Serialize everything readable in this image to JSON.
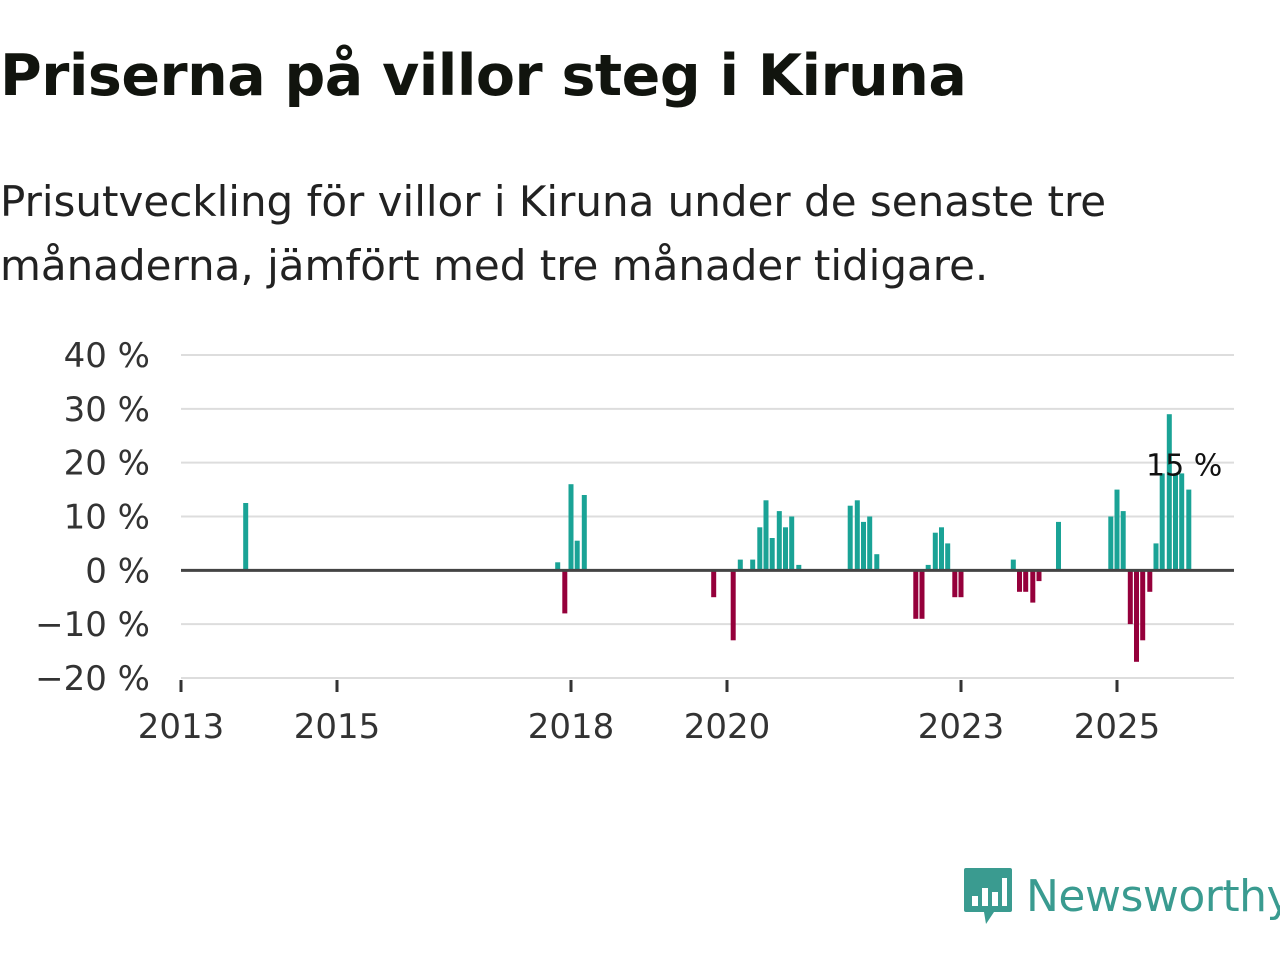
{
  "title": "Priserna på villor steg i Kiruna",
  "subtitle": "Prisutveckling för villor i Kiruna under de senaste tre månaderna, jämfört med tre månader tidigare.",
  "brand": {
    "name": "Newsworthy",
    "color": "#3a9b90"
  },
  "colors": {
    "positive": "#1aa396",
    "negative": "#95003b",
    "grid": "#dddddd",
    "zero": "#444444"
  },
  "chart_data": {
    "type": "bar",
    "title": "Priserna på villor steg i Kiruna",
    "ylabel": "",
    "xlabel": "",
    "ylim": [
      -20,
      40
    ],
    "xlim": [
      2013.0,
      2026.5
    ],
    "y_ticks": [
      {
        "value": 40,
        "label": "40 %"
      },
      {
        "value": 30,
        "label": "30 %"
      },
      {
        "value": 20,
        "label": "20 %"
      },
      {
        "value": 10,
        "label": "10 %"
      },
      {
        "value": 0,
        "label": "0 %"
      },
      {
        "value": -10,
        "label": "−10 %"
      },
      {
        "value": -20,
        "label": "−20 %"
      }
    ],
    "x_ticks": [
      {
        "value": 2013,
        "label": "2013"
      },
      {
        "value": 2015,
        "label": "2015"
      },
      {
        "value": 2018,
        "label": "2018"
      },
      {
        "value": 2020,
        "label": "2020"
      },
      {
        "value": 2023,
        "label": "2023"
      },
      {
        "value": 2025,
        "label": "2025"
      }
    ],
    "annotation": {
      "label": "15 %",
      "x": 2026.25,
      "value": 15
    },
    "x": [
      2013.83,
      2017.83,
      2017.92,
      2018.0,
      2018.08,
      2018.17,
      2019.83,
      2020.08,
      2020.17,
      2020.33,
      2020.42,
      2020.5,
      2020.58,
      2020.67,
      2020.75,
      2020.83,
      2020.92,
      2021.58,
      2021.67,
      2021.75,
      2021.83,
      2021.92,
      2022.42,
      2022.5,
      2022.58,
      2022.67,
      2022.75,
      2022.83,
      2022.92,
      2023.0,
      2023.67,
      2023.75,
      2023.83,
      2023.92,
      2024.0,
      2024.25,
      2024.92,
      2025.0,
      2025.08,
      2025.17,
      2025.25,
      2025.33,
      2025.42,
      2025.5,
      2025.58,
      2025.67,
      2025.75,
      2025.83,
      2025.92
    ],
    "values": [
      12.5,
      1.5,
      -8,
      16,
      5.5,
      14,
      -5,
      -13,
      2,
      2,
      8,
      13,
      6,
      11,
      8,
      10,
      1,
      12,
      13,
      9,
      10,
      3,
      -9,
      -9,
      1,
      7,
      8,
      5,
      -5,
      -5,
      2,
      -4,
      -4,
      -6,
      -2,
      9,
      10,
      15,
      11,
      -10,
      -17,
      -13,
      -4,
      5,
      18,
      29,
      18,
      18,
      15
    ]
  }
}
